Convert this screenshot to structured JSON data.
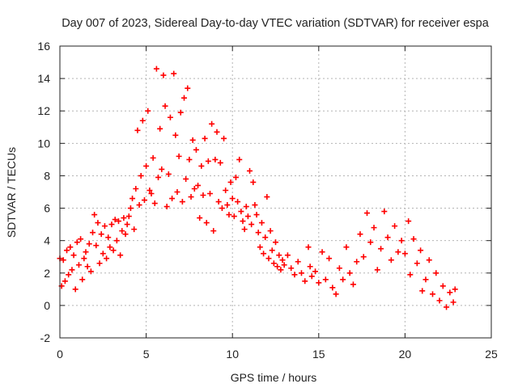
{
  "chart_data": {
    "type": "scatter",
    "title": "Day 007 of 2023, Sidereal Day-to-day VTEC variation (SDTVAR) for receiver espa",
    "xlabel": "GPS time / hours",
    "ylabel": "SDTVAR / TECUs",
    "xlim": [
      0,
      25
    ],
    "ylim": [
      -2,
      16
    ],
    "xticks": [
      "0",
      "5",
      "10",
      "15",
      "20",
      "25"
    ],
    "yticks": [
      "-2",
      "0",
      "2",
      "4",
      "6",
      "8",
      "10",
      "12",
      "14",
      "16"
    ],
    "grid": true,
    "marker": "+",
    "series": [
      {
        "name": "SDTVAR",
        "color": "#ff0000",
        "points": [
          [
            0.0,
            2.9
          ],
          [
            0.1,
            1.2
          ],
          [
            0.2,
            2.8
          ],
          [
            0.3,
            1.5
          ],
          [
            0.4,
            3.4
          ],
          [
            0.5,
            1.9
          ],
          [
            0.6,
            3.6
          ],
          [
            0.7,
            2.2
          ],
          [
            0.8,
            3.1
          ],
          [
            0.9,
            1.0
          ],
          [
            1.0,
            3.9
          ],
          [
            1.1,
            2.5
          ],
          [
            1.2,
            4.1
          ],
          [
            1.3,
            1.6
          ],
          [
            1.4,
            2.9
          ],
          [
            1.5,
            3.3
          ],
          [
            1.6,
            2.4
          ],
          [
            1.7,
            3.8
          ],
          [
            1.8,
            2.1
          ],
          [
            1.9,
            4.5
          ],
          [
            2.0,
            5.6
          ],
          [
            2.1,
            3.7
          ],
          [
            2.2,
            5.1
          ],
          [
            2.3,
            2.6
          ],
          [
            2.4,
            4.4
          ],
          [
            2.5,
            3.2
          ],
          [
            2.6,
            4.9
          ],
          [
            2.7,
            2.9
          ],
          [
            2.8,
            4.2
          ],
          [
            2.9,
            3.6
          ],
          [
            3.0,
            5.0
          ],
          [
            3.1,
            3.4
          ],
          [
            3.2,
            5.3
          ],
          [
            3.3,
            4.0
          ],
          [
            3.4,
            5.2
          ],
          [
            3.5,
            3.1
          ],
          [
            3.6,
            4.6
          ],
          [
            3.7,
            5.4
          ],
          [
            3.8,
            4.4
          ],
          [
            3.9,
            5.0
          ],
          [
            4.0,
            5.5
          ],
          [
            4.1,
            6.0
          ],
          [
            4.2,
            6.6
          ],
          [
            4.3,
            4.7
          ],
          [
            4.4,
            7.2
          ],
          [
            4.5,
            10.8
          ],
          [
            4.6,
            6.2
          ],
          [
            4.7,
            8.0
          ],
          [
            4.8,
            11.4
          ],
          [
            4.9,
            6.5
          ],
          [
            5.0,
            8.6
          ],
          [
            5.1,
            12.0
          ],
          [
            5.2,
            7.1
          ],
          [
            5.3,
            6.9
          ],
          [
            5.4,
            9.1
          ],
          [
            5.5,
            6.3
          ],
          [
            5.6,
            14.6
          ],
          [
            5.7,
            7.9
          ],
          [
            5.8,
            10.9
          ],
          [
            5.9,
            8.4
          ],
          [
            6.0,
            14.2
          ],
          [
            6.1,
            12.3
          ],
          [
            6.2,
            6.1
          ],
          [
            6.3,
            8.1
          ],
          [
            6.4,
            11.6
          ],
          [
            6.5,
            6.6
          ],
          [
            6.6,
            14.3
          ],
          [
            6.7,
            10.5
          ],
          [
            6.8,
            7.0
          ],
          [
            6.9,
            9.2
          ],
          [
            7.0,
            11.9
          ],
          [
            7.1,
            6.4
          ],
          [
            7.2,
            12.8
          ],
          [
            7.3,
            7.8
          ],
          [
            7.4,
            13.4
          ],
          [
            7.5,
            9.0
          ],
          [
            7.6,
            6.7
          ],
          [
            7.7,
            10.2
          ],
          [
            7.8,
            7.2
          ],
          [
            7.9,
            9.6
          ],
          [
            8.0,
            7.4
          ],
          [
            8.1,
            5.4
          ],
          [
            8.2,
            8.6
          ],
          [
            8.3,
            6.8
          ],
          [
            8.4,
            10.3
          ],
          [
            8.5,
            5.1
          ],
          [
            8.6,
            8.9
          ],
          [
            8.7,
            6.9
          ],
          [
            8.8,
            11.2
          ],
          [
            8.9,
            4.6
          ],
          [
            9.0,
            9.0
          ],
          [
            9.1,
            10.7
          ],
          [
            9.2,
            6.4
          ],
          [
            9.3,
            8.8
          ],
          [
            9.4,
            6.0
          ],
          [
            9.5,
            10.3
          ],
          [
            9.6,
            7.1
          ],
          [
            9.7,
            6.2
          ],
          [
            9.8,
            5.6
          ],
          [
            9.9,
            7.6
          ],
          [
            10.0,
            6.6
          ],
          [
            10.1,
            5.5
          ],
          [
            10.2,
            7.9
          ],
          [
            10.3,
            6.4
          ],
          [
            10.4,
            9.0
          ],
          [
            10.5,
            5.8
          ],
          [
            10.6,
            5.2
          ],
          [
            10.7,
            4.7
          ],
          [
            10.8,
            6.1
          ],
          [
            10.9,
            5.5
          ],
          [
            11.0,
            8.3
          ],
          [
            11.1,
            5.0
          ],
          [
            11.2,
            7.6
          ],
          [
            11.3,
            6.2
          ],
          [
            11.4,
            5.6
          ],
          [
            11.5,
            4.5
          ],
          [
            11.6,
            3.6
          ],
          [
            11.7,
            5.1
          ],
          [
            11.8,
            3.2
          ],
          [
            11.9,
            4.2
          ],
          [
            12.0,
            6.7
          ],
          [
            12.1,
            2.9
          ],
          [
            12.2,
            4.6
          ],
          [
            12.3,
            3.4
          ],
          [
            12.4,
            2.6
          ],
          [
            12.5,
            3.9
          ],
          [
            12.6,
            2.4
          ],
          [
            12.7,
            3.1
          ],
          [
            12.8,
            2.2
          ],
          [
            12.9,
            2.8
          ],
          [
            13.0,
            2.5
          ],
          [
            13.2,
            3.1
          ],
          [
            13.4,
            2.3
          ],
          [
            13.6,
            1.9
          ],
          [
            13.8,
            2.7
          ],
          [
            14.0,
            2.0
          ],
          [
            14.2,
            1.5
          ],
          [
            14.4,
            3.6
          ],
          [
            14.5,
            2.4
          ],
          [
            14.6,
            1.8
          ],
          [
            14.8,
            2.1
          ],
          [
            15.0,
            1.4
          ],
          [
            15.2,
            3.3
          ],
          [
            15.4,
            1.6
          ],
          [
            15.6,
            2.9
          ],
          [
            15.8,
            1.1
          ],
          [
            16.0,
            0.7
          ],
          [
            16.2,
            2.3
          ],
          [
            16.4,
            1.6
          ],
          [
            16.6,
            3.6
          ],
          [
            16.8,
            2.0
          ],
          [
            17.0,
            1.3
          ],
          [
            17.2,
            2.7
          ],
          [
            17.4,
            4.4
          ],
          [
            17.6,
            3.0
          ],
          [
            17.8,
            5.7
          ],
          [
            18.0,
            3.9
          ],
          [
            18.2,
            4.8
          ],
          [
            18.4,
            2.2
          ],
          [
            18.6,
            3.5
          ],
          [
            18.8,
            5.8
          ],
          [
            19.0,
            4.2
          ],
          [
            19.2,
            2.8
          ],
          [
            19.4,
            4.9
          ],
          [
            19.6,
            3.3
          ],
          [
            19.8,
            4.0
          ],
          [
            20.0,
            3.2
          ],
          [
            20.2,
            5.2
          ],
          [
            20.3,
            1.9
          ],
          [
            20.5,
            4.1
          ],
          [
            20.7,
            2.6
          ],
          [
            20.9,
            3.4
          ],
          [
            21.0,
            0.9
          ],
          [
            21.2,
            1.6
          ],
          [
            21.4,
            2.8
          ],
          [
            21.6,
            0.7
          ],
          [
            21.8,
            2.0
          ],
          [
            22.0,
            0.3
          ],
          [
            22.2,
            1.2
          ],
          [
            22.4,
            -0.1
          ],
          [
            22.6,
            0.8
          ],
          [
            22.8,
            0.2
          ],
          [
            22.9,
            1.0
          ]
        ]
      }
    ]
  }
}
